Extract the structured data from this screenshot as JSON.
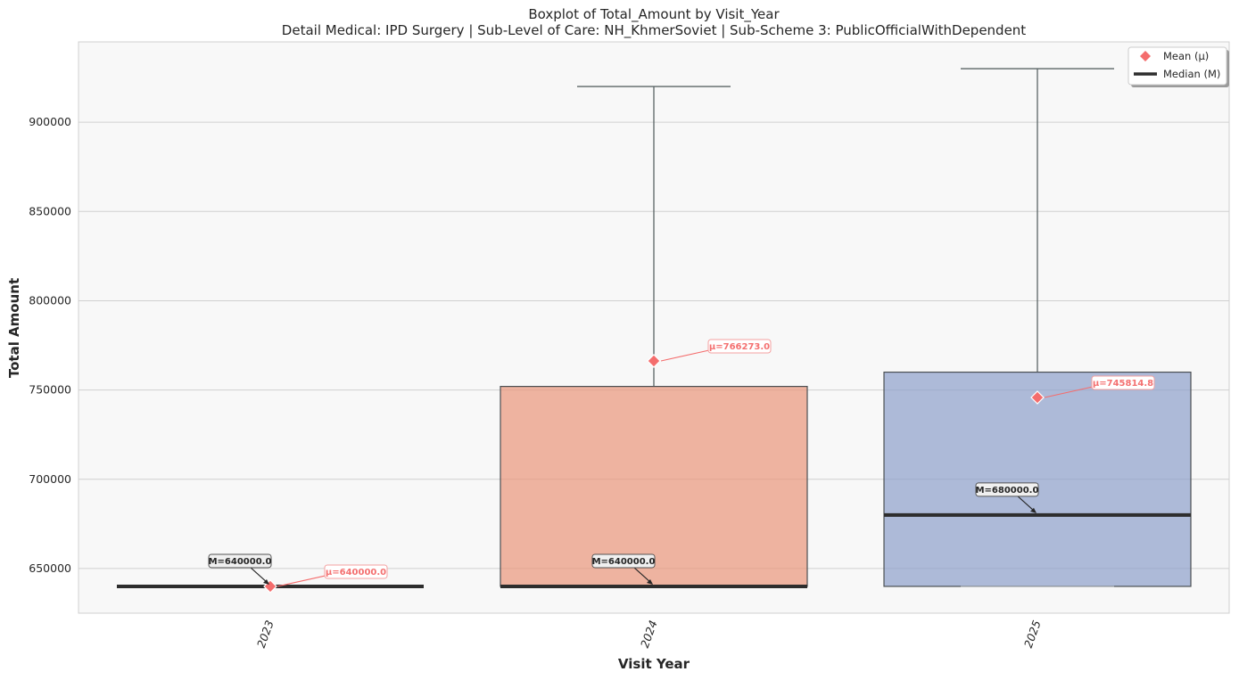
{
  "chart_data": {
    "type": "boxplot",
    "title": "Boxplot of Total_Amount by Visit_Year",
    "subtitle": "Detail Medical: IPD Surgery | Sub-Level of Care: NH_KhmerSoviet | Sub-Scheme 3: PublicOfficialWithDependent",
    "xlabel": "Visit Year",
    "ylabel": "Total Amount",
    "ylim": [
      625000,
      945000
    ],
    "yticks": [
      650000,
      700000,
      750000,
      800000,
      850000,
      900000
    ],
    "grid": true,
    "legend_position": "top-right",
    "legend": [
      {
        "label": "Mean (μ)",
        "marker": "diamond",
        "color": "#f46d6d"
      },
      {
        "label": "Median (M)",
        "marker": "line",
        "color": "#2d2d2d"
      }
    ],
    "categories": [
      "2023",
      "2024",
      "2025"
    ],
    "boxes": [
      {
        "category": "2023",
        "whisker_low": 640000,
        "q1": 640000,
        "median": 640000,
        "q3": 640000,
        "whisker_high": 640000,
        "mean": 640000,
        "color": "#8da0cb",
        "median_label": "M=640000.0",
        "mean_label": "μ=640000.0"
      },
      {
        "category": "2024",
        "whisker_low": 640000,
        "q1": 640000,
        "median": 640000,
        "q3": 752000,
        "whisker_high": 920000,
        "mean": 766273.0,
        "color": "#e9967a",
        "median_label": "M=640000.0",
        "mean_label": "μ=766273.0"
      },
      {
        "category": "2025",
        "whisker_low": 640000,
        "q1": 640000,
        "median": 680000,
        "q3": 760000,
        "whisker_high": 930000,
        "mean": 745814.8,
        "color": "#8da0cb",
        "median_label": "M=680000.0",
        "mean_label": "μ=745814.8"
      }
    ]
  }
}
